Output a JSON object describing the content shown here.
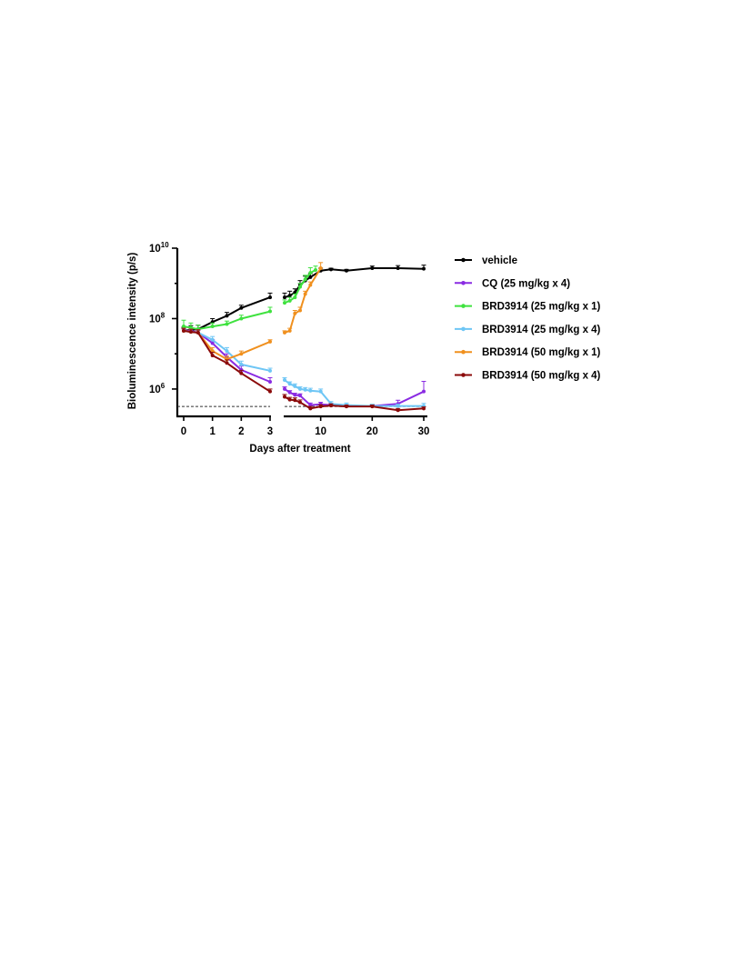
{
  "chart_data": {
    "type": "line",
    "xlabel": "Days after treatment",
    "ylabel": "Bioluminescence intensity (p/s)",
    "y_scale": "log",
    "ylim": [
      200000,
      10000000000
    ],
    "y_tick_labels": [
      {
        "value": 1000000,
        "base": "10",
        "exp": "6"
      },
      {
        "value": 100000000,
        "base": "10",
        "exp": "8"
      },
      {
        "value": 10000000000,
        "base": "10",
        "exp": "10"
      }
    ],
    "x_segments": [
      {
        "xlim": [
          0,
          3
        ],
        "ticks": [
          0,
          1,
          2,
          3
        ],
        "tick_labels": [
          "0",
          "1",
          "2",
          "3"
        ]
      },
      {
        "xlim": [
          3,
          30
        ],
        "ticks": [
          10,
          20,
          30
        ],
        "tick_labels": [
          "10",
          "20",
          "30"
        ]
      }
    ],
    "detection_limit": 320000,
    "legend_position": "right",
    "series": [
      {
        "name": "vehicle",
        "color": "#000000",
        "x": [
          0,
          0.25,
          0.5,
          1,
          1.5,
          2,
          3,
          3,
          4,
          5,
          6,
          7,
          8,
          10,
          12,
          15,
          20,
          25,
          30
        ],
        "y": [
          45000000,
          48000000,
          50000000,
          80000000,
          120000000,
          200000000,
          400000000,
          400000000,
          450000000,
          550000000,
          900000000,
          1200000000,
          1500000000,
          2300000000,
          2500000000,
          2300000000,
          2700000000,
          2700000000,
          2600000000
        ],
        "err": [
          12000000,
          15000000,
          15000000,
          20000000,
          30000000,
          40000000,
          130000000,
          130000000,
          150000000,
          150000000,
          300000000,
          400000000,
          400000000,
          400000000,
          200000000,
          200000000,
          400000000,
          500000000,
          700000000
        ]
      },
      {
        "name": "CQ (25 mg/kg x 4)",
        "color": "#8a2be2",
        "x": [
          0,
          0.25,
          0.5,
          1,
          1.5,
          2,
          3,
          3,
          4,
          5,
          6,
          8,
          10,
          12,
          15,
          20,
          25,
          30
        ],
        "y": [
          45000000,
          45000000,
          40000000,
          20000000,
          8000000,
          3500000,
          1600000,
          1000000,
          800000,
          680000,
          650000,
          350000,
          370000,
          350000,
          330000,
          330000,
          380000,
          850000
        ],
        "err": [
          6000000,
          6000000,
          6000000,
          5000000,
          2000000,
          1000000,
          500000,
          150000,
          100000,
          80000,
          80000,
          50000,
          50000,
          40000,
          30000,
          30000,
          100000,
          800000
        ]
      },
      {
        "name": "BRD3914 (25 mg/kg x 1)",
        "color": "#3fe23f",
        "x": [
          0,
          0.25,
          0.5,
          1,
          1.5,
          2,
          3,
          3,
          4,
          5,
          6,
          7,
          8,
          9
        ],
        "y": [
          60000000,
          55000000,
          50000000,
          60000000,
          70000000,
          100000000,
          160000000,
          280000000,
          320000000,
          400000000,
          800000000,
          1300000000,
          2000000000,
          2400000000
        ],
        "err": [
          30000000,
          20000000,
          15000000,
          15000000,
          15000000,
          25000000,
          50000000,
          60000000,
          80000000,
          100000000,
          200000000,
          400000000,
          800000000,
          700000000
        ]
      },
      {
        "name": "BRD3914 (25 mg/kg x 4)",
        "color": "#6ec6f5",
        "x": [
          0,
          0.25,
          0.5,
          1,
          1.5,
          2,
          3,
          3,
          4,
          5,
          6,
          7,
          8,
          10,
          12,
          15,
          20,
          25,
          30
        ],
        "y": [
          45000000,
          42000000,
          40000000,
          25000000,
          12000000,
          5000000,
          3300000,
          1800000,
          1400000,
          1200000,
          1000000,
          950000,
          900000,
          850000,
          380000,
          350000,
          330000,
          330000,
          330000
        ],
        "err": [
          8000000,
          8000000,
          8000000,
          6000000,
          3000000,
          1200000,
          600000,
          300000,
          200000,
          200000,
          150000,
          150000,
          150000,
          150000,
          60000,
          50000,
          40000,
          40000,
          60000
        ]
      },
      {
        "name": "BRD3914 (50 mg/kg x 1)",
        "color": "#f0901e",
        "x": [
          0,
          0.25,
          0.5,
          1,
          1.5,
          2,
          3,
          3,
          4,
          5,
          6,
          7,
          8,
          10
        ],
        "y": [
          45000000,
          42000000,
          40000000,
          12000000,
          7000000,
          10000000,
          22000000,
          40000000,
          45000000,
          140000000,
          170000000,
          500000000,
          900000000,
          2700000000
        ],
        "err": [
          8000000,
          8000000,
          8000000,
          3000000,
          1500000,
          2000000,
          3000000,
          5000000,
          8000000,
          30000000,
          40000000,
          100000000,
          200000000,
          1200000000
        ]
      },
      {
        "name": "BRD3914 (50 mg/kg x 4)",
        "color": "#8b0a0a",
        "x": [
          0,
          0.25,
          0.5,
          1,
          1.5,
          2,
          3,
          3,
          4,
          5,
          6,
          8,
          10,
          12,
          15,
          20,
          25,
          30
        ],
        "y": [
          45000000,
          42000000,
          40000000,
          9000000,
          5500000,
          2800000,
          850000,
          600000,
          500000,
          480000,
          420000,
          280000,
          320000,
          340000,
          320000,
          320000,
          250000,
          280000
        ],
        "err": [
          8000000,
          8000000,
          8000000,
          2000000,
          1200000,
          600000,
          150000,
          100000,
          80000,
          80000,
          70000,
          40000,
          40000,
          40000,
          30000,
          30000,
          30000,
          30000
        ]
      }
    ]
  }
}
